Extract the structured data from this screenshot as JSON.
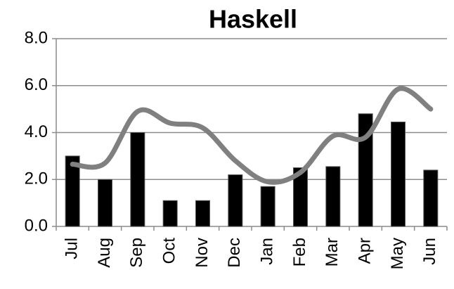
{
  "chart_data": {
    "type": "combo",
    "title": "Haskell",
    "categories": [
      "Jul",
      "Aug",
      "Sep",
      "Oct",
      "Nov",
      "Dec",
      "Jan",
      "Feb",
      "Mar",
      "Apr",
      "May",
      "Jun"
    ],
    "series": [
      {
        "type": "bar",
        "color": "#000000",
        "values": [
          3.0,
          2.0,
          4.0,
          1.1,
          1.1,
          2.2,
          1.7,
          2.5,
          2.55,
          4.8,
          4.45,
          2.4
        ]
      },
      {
        "type": "line",
        "color": "#808080",
        "values": [
          2.65,
          2.7,
          4.9,
          4.4,
          4.2,
          2.8,
          1.9,
          2.3,
          3.85,
          3.8,
          5.85,
          5.0
        ]
      }
    ],
    "ylim": [
      0,
      8
    ],
    "yticks": [
      {
        "value": 0,
        "label": "0.0"
      },
      {
        "value": 2,
        "label": "2.0"
      },
      {
        "value": 4,
        "label": "4.0"
      },
      {
        "value": 6,
        "label": "6.0"
      },
      {
        "value": 8,
        "label": "8.0"
      }
    ],
    "grid": true
  }
}
